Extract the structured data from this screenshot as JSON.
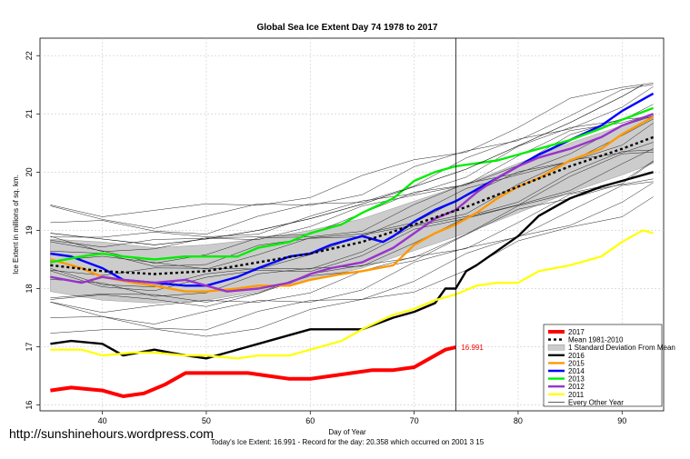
{
  "chart_data": {
    "type": "line",
    "title": "Global Sea Ice Extent Day 74 1978 to 2017",
    "xlabel": "Day of Year",
    "ylabel": "Ice Extent in millions of sq. km.",
    "xlim": [
      34,
      94
    ],
    "ylim": [
      15.9,
      22.3
    ],
    "x_ticks": [
      "40",
      "50",
      "60",
      "70",
      "80",
      "90"
    ],
    "y_ticks": [
      "16",
      "17",
      "18",
      "19",
      "20",
      "21",
      "22"
    ],
    "grid": true,
    "current_day": 74,
    "end_label": "16.991",
    "watermark": "http://sunshinehours.wordpress.com",
    "footnote": "Today's Ice Extent: 16.991  - Record for the day: 20.358 which occurred on 2001 3 15",
    "legend_position": "bottom-right",
    "mean": {
      "name": "Mean 1981-2010",
      "color": "#000000",
      "points": [
        [
          35,
          18.4
        ],
        [
          40,
          18.3
        ],
        [
          45,
          18.25
        ],
        [
          50,
          18.3
        ],
        [
          55,
          18.45
        ],
        [
          60,
          18.6
        ],
        [
          65,
          18.8
        ],
        [
          70,
          19.1
        ],
        [
          75,
          19.4
        ],
        [
          80,
          19.75
        ],
        [
          85,
          20.1
        ],
        [
          90,
          20.4
        ],
        [
          93,
          20.6
        ]
      ]
    },
    "std_band": {
      "name": "1 Standard Deviation From Mean",
      "color": "#cccccc",
      "upper": [
        [
          35,
          18.85
        ],
        [
          40,
          18.8
        ],
        [
          45,
          18.7
        ],
        [
          50,
          18.75
        ],
        [
          55,
          18.85
        ],
        [
          60,
          19.0
        ],
        [
          65,
          19.2
        ],
        [
          70,
          19.5
        ],
        [
          75,
          19.8
        ],
        [
          80,
          20.15
        ],
        [
          85,
          20.5
        ],
        [
          90,
          20.8
        ],
        [
          93,
          21.0
        ]
      ],
      "lower": [
        [
          35,
          17.95
        ],
        [
          40,
          17.8
        ],
        [
          45,
          17.75
        ],
        [
          50,
          17.8
        ],
        [
          55,
          17.95
        ],
        [
          60,
          18.15
        ],
        [
          65,
          18.35
        ],
        [
          70,
          18.65
        ],
        [
          75,
          18.95
        ],
        [
          80,
          19.3
        ],
        [
          85,
          19.65
        ],
        [
          90,
          19.95
        ],
        [
          93,
          20.15
        ]
      ]
    },
    "series": [
      {
        "name": "2016",
        "color": "#000000",
        "points": [
          [
            35,
            17.05
          ],
          [
            37,
            17.1
          ],
          [
            40,
            17.05
          ],
          [
            42,
            16.85
          ],
          [
            45,
            16.95
          ],
          [
            48,
            16.85
          ],
          [
            50,
            16.8
          ],
          [
            53,
            16.95
          ],
          [
            55,
            17.05
          ],
          [
            58,
            17.2
          ],
          [
            60,
            17.3
          ],
          [
            62,
            17.3
          ],
          [
            65,
            17.3
          ],
          [
            68,
            17.5
          ],
          [
            70,
            17.6
          ],
          [
            72,
            17.75
          ],
          [
            73,
            18.0
          ],
          [
            74,
            18.0
          ],
          [
            75,
            18.3
          ],
          [
            76,
            18.4
          ],
          [
            78,
            18.65
          ],
          [
            80,
            18.9
          ],
          [
            82,
            19.25
          ],
          [
            85,
            19.55
          ],
          [
            88,
            19.75
          ],
          [
            90,
            19.85
          ],
          [
            93,
            20.0
          ]
        ]
      },
      {
        "name": "2015",
        "color": "#ff9900",
        "points": [
          [
            35,
            18.5
          ],
          [
            38,
            18.35
          ],
          [
            40,
            18.2
          ],
          [
            43,
            18.1
          ],
          [
            45,
            18.05
          ],
          [
            48,
            17.95
          ],
          [
            50,
            17.95
          ],
          [
            53,
            18.0
          ],
          [
            55,
            18.05
          ],
          [
            58,
            18.05
          ],
          [
            60,
            18.15
          ],
          [
            63,
            18.25
          ],
          [
            65,
            18.3
          ],
          [
            68,
            18.4
          ],
          [
            70,
            18.75
          ],
          [
            72,
            18.95
          ],
          [
            74,
            19.1
          ],
          [
            76,
            19.3
          ],
          [
            78,
            19.55
          ],
          [
            80,
            19.75
          ],
          [
            82,
            19.9
          ],
          [
            85,
            20.2
          ],
          [
            88,
            20.4
          ],
          [
            90,
            20.65
          ],
          [
            93,
            20.95
          ]
        ]
      },
      {
        "name": "2014",
        "color": "#0000ff",
        "points": [
          [
            35,
            18.6
          ],
          [
            37,
            18.55
          ],
          [
            40,
            18.35
          ],
          [
            42,
            18.15
          ],
          [
            45,
            18.1
          ],
          [
            48,
            18.05
          ],
          [
            50,
            18.05
          ],
          [
            53,
            18.2
          ],
          [
            55,
            18.35
          ],
          [
            58,
            18.55
          ],
          [
            60,
            18.6
          ],
          [
            62,
            18.75
          ],
          [
            65,
            18.9
          ],
          [
            67,
            18.8
          ],
          [
            68,
            18.9
          ],
          [
            70,
            19.15
          ],
          [
            72,
            19.35
          ],
          [
            74,
            19.5
          ],
          [
            76,
            19.7
          ],
          [
            78,
            19.9
          ],
          [
            80,
            20.1
          ],
          [
            82,
            20.3
          ],
          [
            85,
            20.55
          ],
          [
            88,
            20.8
          ],
          [
            90,
            21.05
          ],
          [
            93,
            21.35
          ]
        ]
      },
      {
        "name": "2013",
        "color": "#00ee00",
        "points": [
          [
            35,
            18.45
          ],
          [
            38,
            18.55
          ],
          [
            40,
            18.6
          ],
          [
            42,
            18.55
          ],
          [
            45,
            18.5
          ],
          [
            48,
            18.55
          ],
          [
            50,
            18.55
          ],
          [
            53,
            18.55
          ],
          [
            55,
            18.7
          ],
          [
            58,
            18.8
          ],
          [
            60,
            18.95
          ],
          [
            63,
            19.1
          ],
          [
            65,
            19.3
          ],
          [
            68,
            19.55
          ],
          [
            70,
            19.85
          ],
          [
            72,
            20.0
          ],
          [
            74,
            20.1
          ],
          [
            76,
            20.15
          ],
          [
            78,
            20.2
          ],
          [
            80,
            20.3
          ],
          [
            82,
            20.4
          ],
          [
            85,
            20.55
          ],
          [
            88,
            20.75
          ],
          [
            90,
            20.9
          ],
          [
            93,
            21.1
          ]
        ]
      },
      {
        "name": "2012",
        "color": "#9933cc",
        "points": [
          [
            35,
            18.2
          ],
          [
            38,
            18.1
          ],
          [
            40,
            18.2
          ],
          [
            42,
            18.15
          ],
          [
            45,
            18.1
          ],
          [
            48,
            18.15
          ],
          [
            50,
            18.05
          ],
          [
            52,
            17.95
          ],
          [
            55,
            18.0
          ],
          [
            58,
            18.1
          ],
          [
            60,
            18.25
          ],
          [
            62,
            18.35
          ],
          [
            65,
            18.45
          ],
          [
            68,
            18.7
          ],
          [
            70,
            18.95
          ],
          [
            72,
            19.2
          ],
          [
            74,
            19.35
          ],
          [
            76,
            19.65
          ],
          [
            78,
            19.9
          ],
          [
            80,
            20.1
          ],
          [
            82,
            20.25
          ],
          [
            85,
            20.4
          ],
          [
            88,
            20.6
          ],
          [
            90,
            20.8
          ],
          [
            93,
            21.0
          ]
        ]
      },
      {
        "name": "2011",
        "color": "#ffff00",
        "points": [
          [
            35,
            16.95
          ],
          [
            38,
            16.95
          ],
          [
            40,
            16.85
          ],
          [
            43,
            16.9
          ],
          [
            45,
            16.9
          ],
          [
            48,
            16.85
          ],
          [
            50,
            16.85
          ],
          [
            53,
            16.8
          ],
          [
            55,
            16.85
          ],
          [
            58,
            16.85
          ],
          [
            60,
            16.95
          ],
          [
            63,
            17.1
          ],
          [
            65,
            17.3
          ],
          [
            68,
            17.55
          ],
          [
            70,
            17.65
          ],
          [
            72,
            17.8
          ],
          [
            74,
            17.9
          ],
          [
            76,
            18.05
          ],
          [
            78,
            18.1
          ],
          [
            80,
            18.1
          ],
          [
            82,
            18.3
          ],
          [
            85,
            18.4
          ],
          [
            88,
            18.55
          ],
          [
            90,
            18.8
          ],
          [
            92,
            19.0
          ],
          [
            93,
            18.95
          ]
        ]
      },
      {
        "name": "2017",
        "color": "#ff0000",
        "points": [
          [
            35,
            16.25
          ],
          [
            37,
            16.3
          ],
          [
            40,
            16.25
          ],
          [
            42,
            16.15
          ],
          [
            44,
            16.2
          ],
          [
            46,
            16.35
          ],
          [
            48,
            16.55
          ],
          [
            50,
            16.55
          ],
          [
            52,
            16.55
          ],
          [
            54,
            16.55
          ],
          [
            56,
            16.5
          ],
          [
            58,
            16.45
          ],
          [
            60,
            16.45
          ],
          [
            62,
            16.5
          ],
          [
            64,
            16.55
          ],
          [
            66,
            16.6
          ],
          [
            68,
            16.6
          ],
          [
            70,
            16.65
          ],
          [
            72,
            16.85
          ],
          [
            73,
            16.95
          ],
          [
            74,
            16.991
          ]
        ]
      },
      {
        "name": "Every Other Year",
        "color": "#000000",
        "points": [
          [
            35,
            18.95
          ],
          [
            40,
            18.85
          ],
          [
            45,
            18.75
          ],
          [
            50,
            18.85
          ],
          [
            55,
            19.0
          ],
          [
            60,
            19.2
          ],
          [
            65,
            19.45
          ],
          [
            70,
            19.75
          ],
          [
            75,
            20.05
          ],
          [
            80,
            20.45
          ],
          [
            85,
            20.85
          ],
          [
            90,
            21.3
          ],
          [
            92,
            21.5
          ]
        ]
      }
    ]
  }
}
